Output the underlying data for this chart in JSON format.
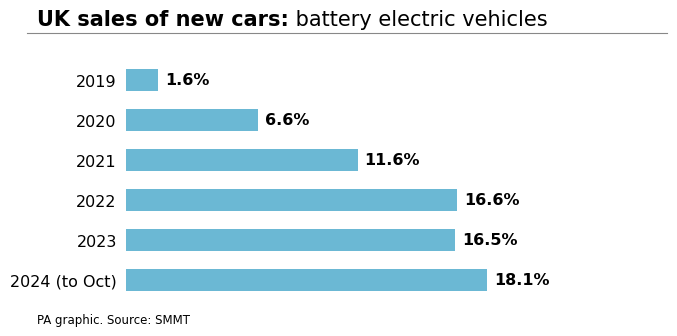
{
  "categories": [
    "2019",
    "2020",
    "2021",
    "2022",
    "2023",
    "2024 (to Oct)"
  ],
  "values": [
    1.6,
    6.6,
    11.6,
    16.6,
    16.5,
    18.1
  ],
  "labels": [
    "1.6%",
    "6.6%",
    "11.6%",
    "16.6%",
    "16.5%",
    "18.1%"
  ],
  "bar_color": "#6bb8d4",
  "title_bold": "UK sales of new cars:",
  "title_normal": " battery electric vehicles",
  "title_fontsize": 15,
  "label_fontsize": 11.5,
  "category_fontsize": 11.5,
  "footer": "PA graphic. Source: SMMT",
  "footer_fontsize": 8.5,
  "xlim": [
    0,
    22
  ],
  "background_color": "#ffffff",
  "bar_height": 0.55
}
